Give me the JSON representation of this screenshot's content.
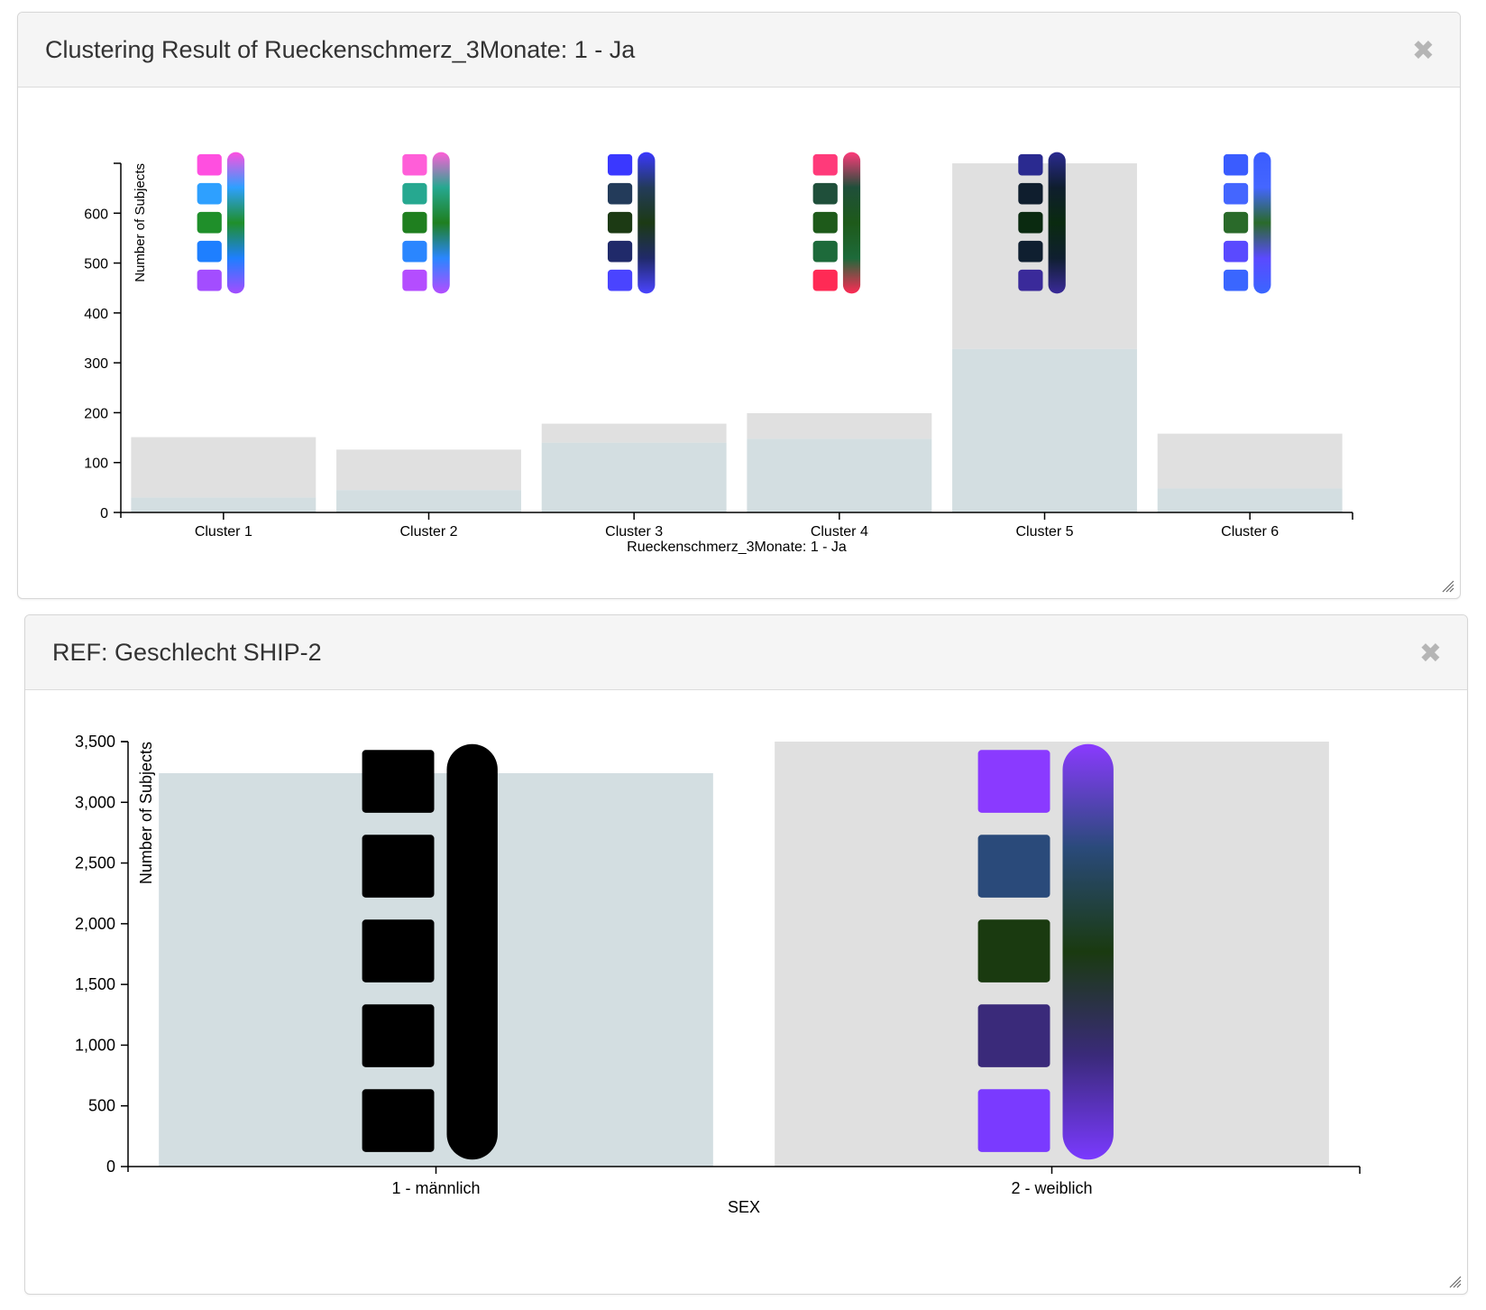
{
  "panels": [
    {
      "title": "Clustering Result of Rueckenschmerz_3Monate: 1 - Ja",
      "close_label": "✖",
      "chart_data": {
        "type": "bar",
        "stacked": true,
        "categories": [
          "Cluster 1",
          "Cluster 2",
          "Cluster 3",
          "Cluster 4",
          "Cluster 5",
          "Cluster 6"
        ],
        "series": [
          {
            "values": [
              30,
              45,
              140,
              148,
              328,
              48
            ],
            "color": "#d3dee1"
          },
          {
            "values": [
              121,
              81,
              38,
              51,
              372,
              110
            ],
            "color": "#e0e0e0"
          }
        ],
        "xlabel": "Rueckenschmerz_3Monate: 1 - Ja",
        "ylabel": "Number of Subjects",
        "yticks": [
          0,
          100,
          200,
          300,
          400,
          500,
          600
        ],
        "ylim": [
          0,
          700
        ],
        "spine_glyph_colors": [
          [
            "#ff4fe0",
            "#2ea0ff",
            "#1f8f2a",
            "#1e7fff",
            "#a34dff"
          ],
          [
            "#ff5ed8",
            "#26a890",
            "#1f7f1f",
            "#2a86ff",
            "#b44dff"
          ],
          [
            "#3a38ff",
            "#233b5a",
            "#1c3a14",
            "#202a6a",
            "#4a44ff"
          ],
          [
            "#ff3a7a",
            "#1f4f3a",
            "#1e5a1a",
            "#1d6a3a",
            "#ff2a55"
          ],
          [
            "#2a2a90",
            "#0f1e2e",
            "#0a2a10",
            "#0f1f30",
            "#3a2a9a"
          ],
          [
            "#3a5cff",
            "#4466ff",
            "#2a6a2a",
            "#5a4aff",
            "#3a66ff"
          ]
        ]
      }
    },
    {
      "title": "REF: Geschlecht SHIP-2",
      "close_label": "✖",
      "chart_data": {
        "type": "bar",
        "categories": [
          "1 - männlich",
          "2 - weiblich"
        ],
        "values": [
          3240,
          3500
        ],
        "bar_colors": [
          "#d3dee1",
          "#e0e0e0"
        ],
        "xlabel": "SEX",
        "ylabel": "Number of Subjects",
        "yticks": [
          "0",
          "500",
          "1,000",
          "1,500",
          "2,000",
          "2,500",
          "3,000",
          "3,500"
        ],
        "ylim": [
          0,
          3500
        ],
        "spine_glyph_colors": [
          [
            "#000000",
            "#000000",
            "#000000",
            "#000000",
            "#000000"
          ],
          [
            "#8a3aff",
            "#2a4a7a",
            "#1a3a10",
            "#3a2a7a",
            "#7a3aff"
          ]
        ]
      }
    }
  ]
}
